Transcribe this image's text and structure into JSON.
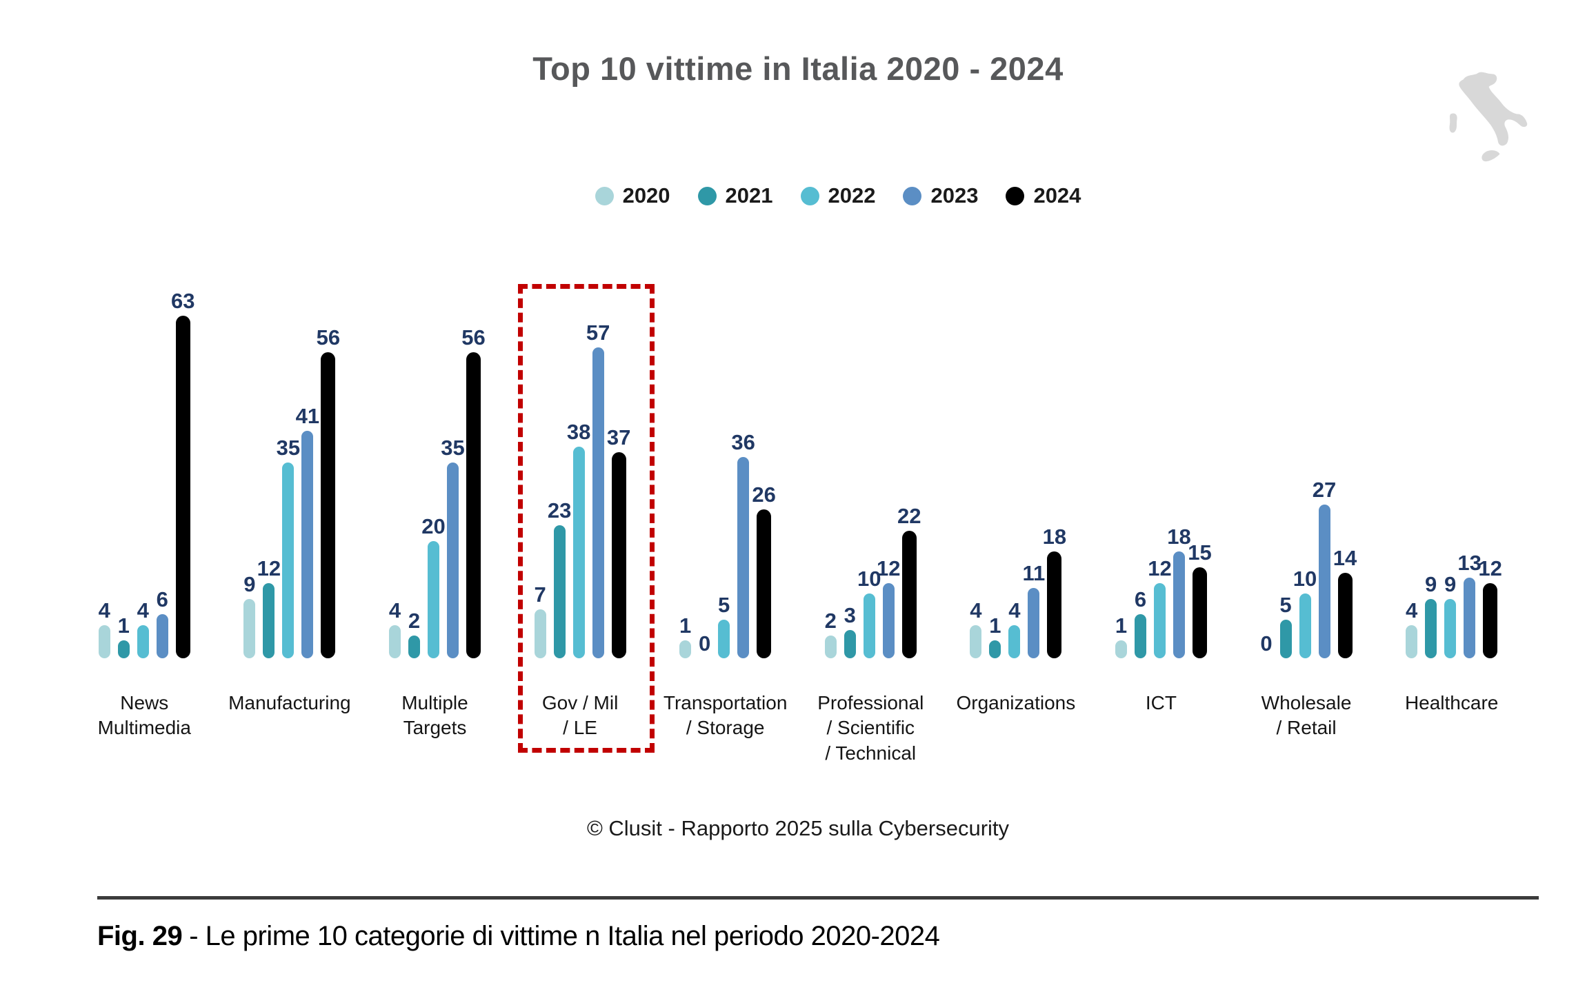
{
  "page": {
    "title": "Top 10 vittime in Italia 2020 - 2024",
    "copyright": "© Clusit - Rapporto 2025 sulla Cybersecurity",
    "caption_fig": "Fig. 29",
    "caption_text": "- Le prime 10 categorie di vittime n Italia nel periodo 2020-2024"
  },
  "colors": {
    "title_text": "#57585a",
    "value_label": "#203864",
    "highlight_box": "#c10000",
    "italy_map": "#d8d8d8"
  },
  "legend": {
    "position": "top",
    "items": [
      {
        "label": "2020",
        "color": "#a9d5da"
      },
      {
        "label": "2021",
        "color": "#2f98a7"
      },
      {
        "label": "2022",
        "color": "#56bdd2"
      },
      {
        "label": "2023",
        "color": "#5b8ec4"
      },
      {
        "label": "2024",
        "color": "#000000"
      }
    ]
  },
  "chart_data": {
    "type": "bar",
    "title": "Top 10 vittime in Italia 2020 - 2024",
    "categories": [
      "News Multimedia",
      "Manufacturing",
      "Multiple Targets",
      "Gov / Mil / LE",
      "Transportation / Storage",
      "Professional / Scientific / Technical",
      "Organizations",
      "ICT",
      "Wholesale / Retail",
      "Healthcare"
    ],
    "category_lines": [
      [
        "News",
        "Multimedia"
      ],
      [
        "Manufacturing"
      ],
      [
        "Multiple",
        "Targets"
      ],
      [
        "Gov / Mil",
        "/ LE"
      ],
      [
        "Transportation",
        "/ Storage"
      ],
      [
        "Professional",
        "/ Scientific",
        "/ Technical"
      ],
      [
        "Organizations"
      ],
      [
        "ICT"
      ],
      [
        "Wholesale",
        "/ Retail"
      ],
      [
        "Healthcare"
      ]
    ],
    "series": [
      {
        "name": "2020",
        "color": "#a9d5da",
        "values": [
          4,
          9,
          4,
          7,
          1,
          2,
          4,
          1,
          0,
          4
        ]
      },
      {
        "name": "2021",
        "color": "#2f98a7",
        "values": [
          1,
          12,
          2,
          23,
          0,
          3,
          1,
          6,
          5,
          9
        ]
      },
      {
        "name": "2022",
        "color": "#56bdd2",
        "values": [
          4,
          35,
          20,
          38,
          5,
          10,
          4,
          12,
          10,
          9
        ]
      },
      {
        "name": "2023",
        "color": "#5b8ec4",
        "values": [
          6,
          41,
          35,
          57,
          36,
          12,
          11,
          18,
          27,
          13
        ]
      },
      {
        "name": "2024",
        "color": "#000000",
        "values": [
          63,
          56,
          56,
          37,
          26,
          22,
          18,
          15,
          14,
          12
        ]
      }
    ],
    "highlighted_category": "Gov / Mil / LE",
    "ylim": [
      0,
      63
    ],
    "grid": false,
    "legend_position": "top",
    "value_labels_shown": true
  }
}
